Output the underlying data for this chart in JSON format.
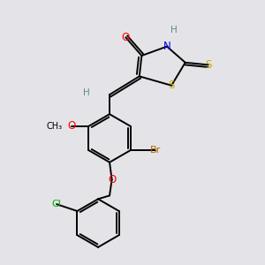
{
  "bg_color": "#e4e4e8",
  "atom_colors": {
    "C": "#000000",
    "H": "#5a8a8a",
    "N": "#0000ee",
    "O": "#ff0000",
    "S": "#ccaa00",
    "Br": "#aa6600",
    "Cl": "#00aa00"
  },
  "bond_color": "#000000"
}
